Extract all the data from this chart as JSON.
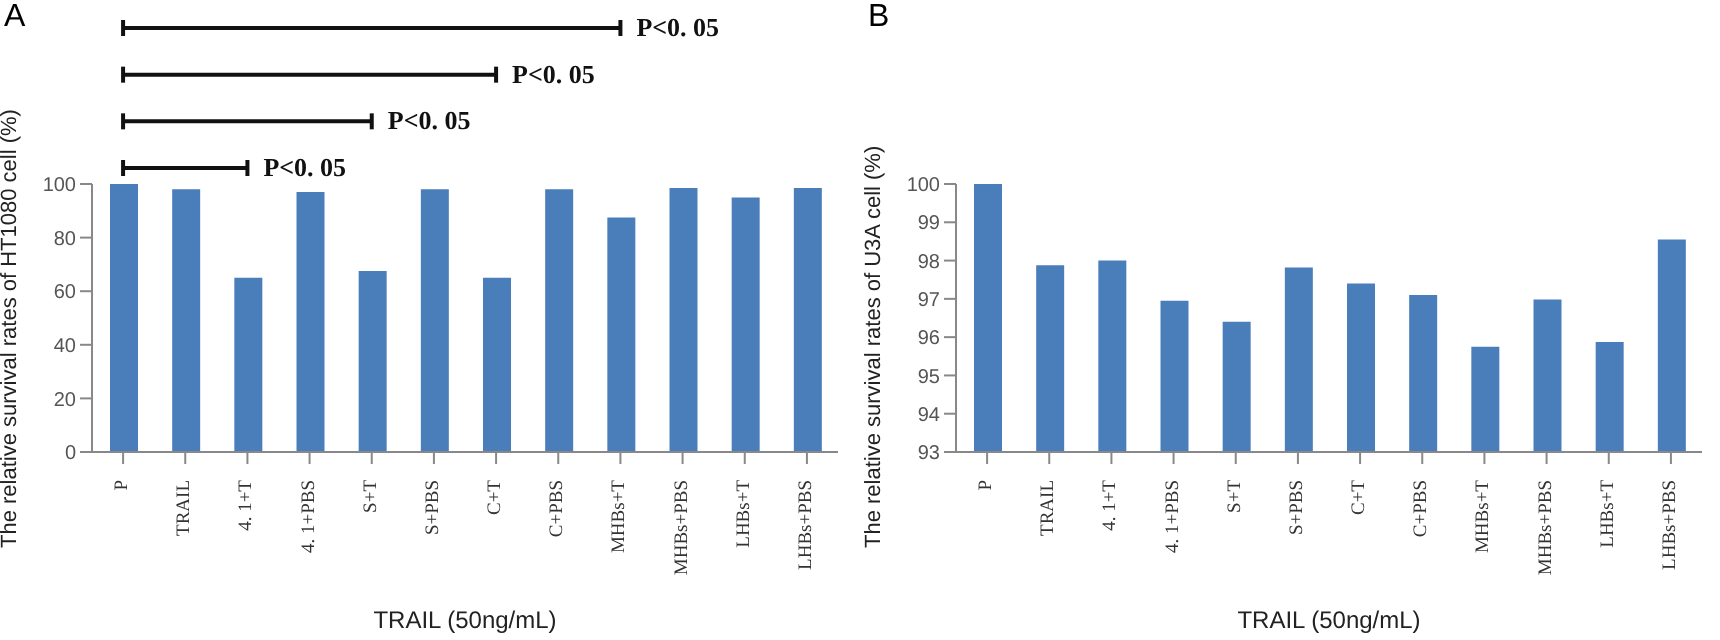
{
  "chart_data": [
    {
      "type": "bar",
      "xlabel": "TRAIL (50ng/mL)",
      "ylabel": "The relative survival rates of HT1080 cell (%)",
      "categories": [
        "P",
        "TRAIL",
        "4. 1+T",
        "4. 1+PBS",
        "S+T",
        "S+PBS",
        "C+T",
        "C+PBS",
        "MHBs+T",
        "MHBs+PBS",
        "LHBs+T",
        "LHBs+PBS"
      ],
      "values": [
        100,
        98,
        65,
        97,
        67.5,
        98,
        65,
        98,
        87.5,
        98.5,
        95,
        98.5
      ],
      "color": "#4a7ebb",
      "ylim": [
        0,
        100
      ],
      "yticks": [
        0,
        20,
        40,
        60,
        80,
        100
      ],
      "grid": false,
      "annotations": [
        "A",
        "P<0. 05",
        "P<0. 05",
        "P<0. 05",
        "P<0. 05"
      ]
    },
    {
      "type": "bar",
      "xlabel": "TRAIL (50ng/mL)",
      "ylabel": "The relative survival rates of U3A cell (%)",
      "categories": [
        "P",
        "TRAIL",
        "4. 1+T",
        "4. 1+PBS",
        "S+T",
        "S+PBS",
        "C+T",
        "C+PBS",
        "MHBs+T",
        "MHBs+PBS",
        "LHBs+T",
        "LHBs+PBS"
      ],
      "values": [
        100,
        97.88,
        98,
        96.95,
        96.4,
        97.82,
        97.4,
        97.1,
        95.75,
        96.98,
        95.87,
        98.55
      ],
      "color": "#4a7ebb",
      "ylim": [
        93,
        100
      ],
      "yticks": [
        93,
        94,
        95,
        96,
        97,
        98,
        99,
        100
      ],
      "grid": false,
      "annotations": [
        "B"
      ]
    }
  ]
}
